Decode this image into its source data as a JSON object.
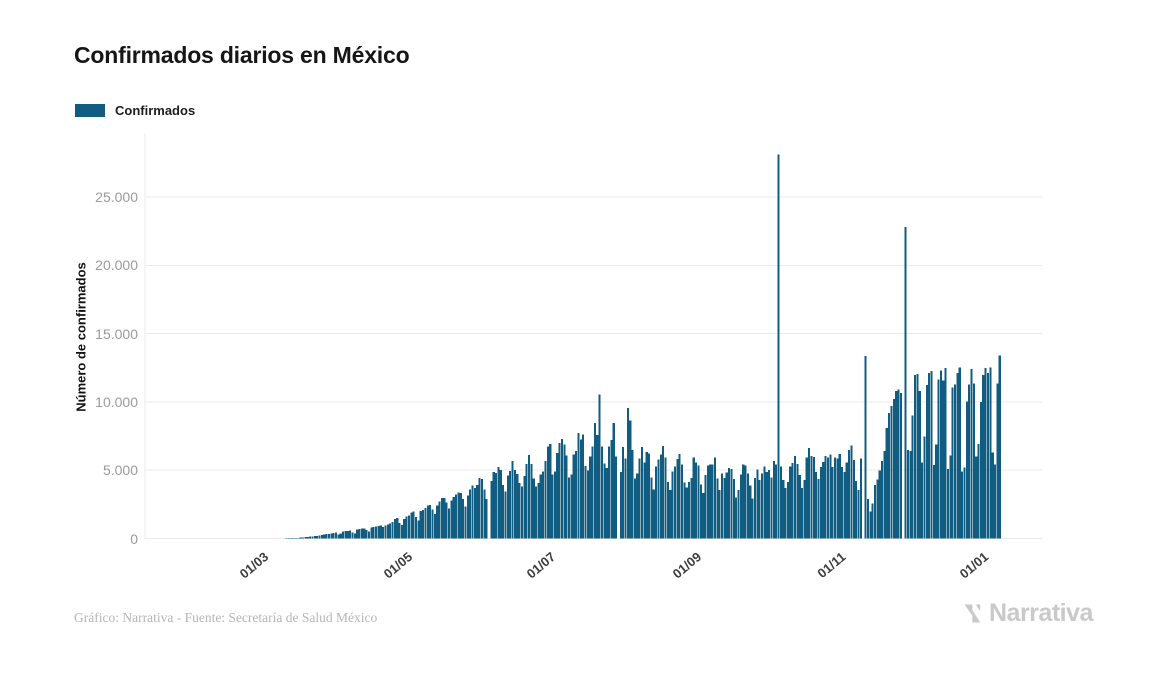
{
  "title": "Confirmados diarios en México",
  "legend": {
    "label": "Confirmados",
    "swatch_style": "background:#105d81"
  },
  "y_axis": {
    "title": "Número de confirmados",
    "ticks": [
      {
        "value": 0,
        "label": "0"
      },
      {
        "value": 5000,
        "label": "5.000"
      },
      {
        "value": 10000,
        "label": "10.000"
      },
      {
        "value": 15000,
        "label": "15.000"
      },
      {
        "value": 20000,
        "label": "20.000"
      },
      {
        "value": 25000,
        "label": "25.000"
      }
    ]
  },
  "x_axis": {
    "ticks": [
      {
        "day": 39,
        "label": "01/03"
      },
      {
        "day": 100,
        "label": "01/05"
      },
      {
        "day": 161,
        "label": "01/07"
      },
      {
        "day": 223,
        "label": "01/09"
      },
      {
        "day": 284,
        "label": "01/11"
      },
      {
        "day": 345,
        "label": "01/01"
      }
    ]
  },
  "footer": {
    "credit": "Gráfico: Narrativa - Fuente: Secretaría de Salud México",
    "brand": "Narrativa"
  },
  "colors": {
    "bar": "#105d81",
    "grid": "#ebebeb",
    "ytick_text": "#9b9b9b",
    "xtick_text": "#3c3c3c",
    "title_text": "#161616",
    "credit_text": "#b6b6b6",
    "brand_text": "#c9c9c9"
  },
  "chart_data": {
    "type": "bar",
    "title": "Confirmados diarios en México",
    "xlabel": "",
    "ylabel": "Número de confirmados",
    "legend_entries": [
      "Confirmados"
    ],
    "legend_position": "top-left",
    "grid": true,
    "ylim": [
      0,
      29650
    ],
    "x_tick_labels": [
      "01/03",
      "01/05",
      "01/07",
      "01/09",
      "01/11",
      "01/01"
    ],
    "x_unit": "day",
    "start_date": "2020-01-22",
    "end_date": "2021-01-11",
    "series": [
      {
        "name": "Confirmados",
        "values": [
          0,
          0,
          0,
          0,
          0,
          0,
          0,
          0,
          0,
          0,
          0,
          0,
          0,
          0,
          0,
          0,
          0,
          0,
          0,
          0,
          0,
          0,
          0,
          0,
          0,
          0,
          0,
          0,
          0,
          0,
          0,
          0,
          0,
          0,
          0,
          0,
          0,
          2,
          1,
          1,
          2,
          1,
          3,
          4,
          5,
          6,
          6,
          8,
          9,
          11,
          14,
          17,
          21,
          26,
          32,
          38,
          46,
          55,
          66,
          80,
          95,
          112,
          130,
          150,
          172,
          198,
          228,
          260,
          290,
          320,
          346,
          375,
          403,
          430,
          286,
          360,
          510,
          535,
          560,
          590,
          425,
          370,
          665,
          690,
          715,
          740,
          622,
          511,
          790,
          835,
          870,
          900,
          940,
          852,
          970,
          1043,
          1089,
          1223,
          1425,
          1515,
          1120,
          975,
          1434,
          1609,
          1671,
          1906,
          1980,
          1562,
          1305,
          1997,
          2075,
          2248,
          2409,
          2437,
          2112,
          1795,
          2414,
          2713,
          2960,
          2973,
          2628,
          2190,
          2764,
          3021,
          3227,
          3377,
          3329,
          2885,
          2348,
          3152,
          3593,
          3891,
          3708,
          3912,
          4442,
          4346,
          3593,
          2885,
          0,
          4199,
          4883,
          4790,
          5222,
          5030,
          3907,
          3427,
          4599,
          4930,
          5662,
          5030,
          4717,
          4050,
          3805,
          4577,
          5437,
          6104,
          5441,
          4410,
          3805,
          4050,
          4683,
          4902,
          5681,
          6741,
          6914,
          4683,
          4902,
          6258,
          6995,
          7280,
          6891,
          6094,
          4482,
          4685,
          6149,
          6412,
          7730,
          7257,
          7615,
          5311,
          4973,
          6019,
          6741,
          8438,
          7573,
          10528,
          6751,
          5480,
          5144,
          6741,
          7208,
          8458,
          5986,
          0,
          4853,
          6686,
          5858,
          9556,
          8639,
          6495,
          4376,
          4767,
          5858,
          6686,
          5561,
          6345,
          6206,
          4448,
          3571,
          5263,
          5792,
          6148,
          6775,
          5928,
          4129,
          3541,
          4916,
          5267,
          5824,
          6196,
          5408,
          4111,
          3719,
          4129,
          4446,
          5937,
          5573,
          5357,
          3949,
          3335,
          4647,
          5351,
          5401,
          5418,
          5935,
          4408,
          3542,
          4771,
          4444,
          4841,
          5167,
          5089,
          4360,
          3017,
          3542,
          4683,
          5408,
          5337,
          4758,
          3886,
          2917,
          4446,
          5053,
          4295,
          4775,
          5263,
          4863,
          5030,
          4466,
          5681,
          5408,
          28115,
          5263,
          4295,
          3712,
          4119,
          5263,
          5514,
          6025,
          5451,
          4650,
          3699,
          4295,
          5942,
          6612,
          6025,
          5966,
          4863,
          4360,
          5250,
          5595,
          6026,
          5948,
          6151,
          5250,
          5931,
          5873,
          6201,
          5225,
          4883,
          5558,
          6470,
          6819,
          5746,
          4199,
          3565,
          5858,
          0,
          13345,
          2874,
          1982,
          2580,
          3918,
          4319,
          4973,
          5658,
          6388,
          8107,
          9187,
          9700,
          10200,
          10794,
          10900,
          10650,
          0,
          22804,
          6462,
          6399,
          9007,
          11974,
          12057,
          10800,
          5558,
          7455,
          11251,
          12099,
          12253,
          5370,
          6870,
          11653,
          12293,
          11581,
          12485,
          5083,
          6083,
          11052,
          11271,
          12099,
          12510,
          4916,
          5212,
          10037,
          11271,
          12406,
          11362,
          5996,
          6914,
          10003,
          11974,
          12485,
          12099,
          12510,
          6300,
          5400,
          11362,
          13400
        ]
      }
    ]
  }
}
